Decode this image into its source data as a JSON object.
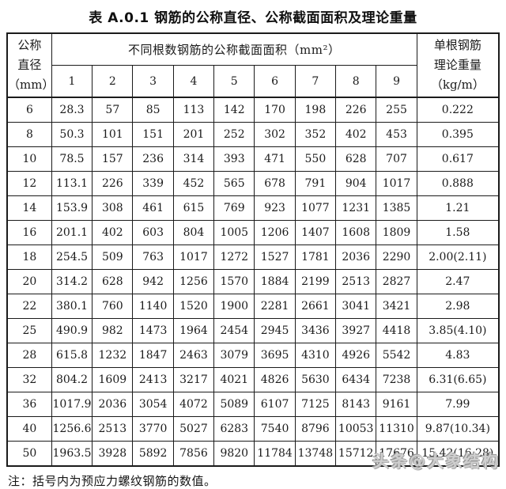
{
  "title": "表 A.0.1  钢筋的公称直径、公称截面面积及理论重量",
  "table": {
    "header": {
      "diameter_lines": [
        "公称",
        "直径",
        "（mm）"
      ],
      "area_label": "不同根数钢筋的公称截面面积（mm²）",
      "count_columns": [
        "1",
        "2",
        "3",
        "4",
        "5",
        "6",
        "7",
        "8",
        "9"
      ],
      "weight_lines": [
        "单根钢筋",
        "理论重量",
        "（kg/m）"
      ]
    },
    "rows": [
      {
        "diameter": "6",
        "areas": [
          "28.3",
          "57",
          "85",
          "113",
          "142",
          "170",
          "198",
          "226",
          "255"
        ],
        "weight": "0.222"
      },
      {
        "diameter": "8",
        "areas": [
          "50.3",
          "101",
          "151",
          "201",
          "252",
          "302",
          "352",
          "402",
          "453"
        ],
        "weight": "0.395"
      },
      {
        "diameter": "10",
        "areas": [
          "78.5",
          "157",
          "236",
          "314",
          "393",
          "471",
          "550",
          "628",
          "707"
        ],
        "weight": "0.617"
      },
      {
        "diameter": "12",
        "areas": [
          "113.1",
          "226",
          "339",
          "452",
          "565",
          "678",
          "791",
          "904",
          "1017"
        ],
        "weight": "0.888"
      },
      {
        "diameter": "14",
        "areas": [
          "153.9",
          "308",
          "461",
          "615",
          "769",
          "923",
          "1077",
          "1231",
          "1385"
        ],
        "weight": "1.21"
      },
      {
        "diameter": "16",
        "areas": [
          "201.1",
          "402",
          "603",
          "804",
          "1005",
          "1206",
          "1407",
          "1608",
          "1809"
        ],
        "weight": "1.58"
      },
      {
        "diameter": "18",
        "areas": [
          "254.5",
          "509",
          "763",
          "1017",
          "1272",
          "1527",
          "1781",
          "2036",
          "2290"
        ],
        "weight": "2.00(2.11)"
      },
      {
        "diameter": "20",
        "areas": [
          "314.2",
          "628",
          "942",
          "1256",
          "1570",
          "1884",
          "2199",
          "2513",
          "2827"
        ],
        "weight": "2.47"
      },
      {
        "diameter": "22",
        "areas": [
          "380.1",
          "760",
          "1140",
          "1520",
          "1900",
          "2281",
          "2661",
          "3041",
          "3421"
        ],
        "weight": "2.98"
      },
      {
        "diameter": "25",
        "areas": [
          "490.9",
          "982",
          "1473",
          "1964",
          "2454",
          "2945",
          "3436",
          "3927",
          "4418"
        ],
        "weight": "3.85(4.10)"
      },
      {
        "diameter": "28",
        "areas": [
          "615.8",
          "1232",
          "1847",
          "2463",
          "3079",
          "3695",
          "4310",
          "4926",
          "5542"
        ],
        "weight": "4.83"
      },
      {
        "diameter": "32",
        "areas": [
          "804.2",
          "1609",
          "2413",
          "3217",
          "4021",
          "4826",
          "5630",
          "6434",
          "7238"
        ],
        "weight": "6.31(6.65)"
      },
      {
        "diameter": "36",
        "areas": [
          "1017.9",
          "2036",
          "3054",
          "4072",
          "5089",
          "6107",
          "7125",
          "8143",
          "9161"
        ],
        "weight": "7.99"
      },
      {
        "diameter": "40",
        "areas": [
          "1256.6",
          "2513",
          "3770",
          "5027",
          "6283",
          "7540",
          "8796",
          "10053",
          "11310"
        ],
        "weight": "9.87(10.34)"
      },
      {
        "diameter": "50",
        "areas": [
          "1963.5",
          "3928",
          "5892",
          "7856",
          "9820",
          "11784",
          "13748",
          "15712",
          "17676"
        ],
        "weight": "15.42(16.28)"
      }
    ]
  },
  "note": "注：括号内为预应力螺纹钢筋的数值。",
  "watermark": "头条@大象结构"
}
